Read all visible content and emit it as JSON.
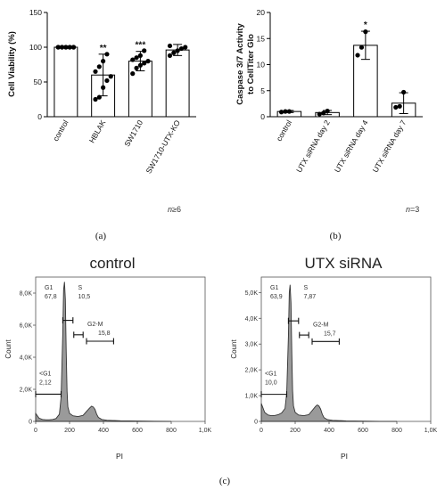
{
  "chart_data": [
    {
      "type": "bar",
      "panel_label": "(a)",
      "ylabel": "Cell Viability (%)",
      "ylim": [
        0,
        150
      ],
      "yticks": [
        "0",
        "50",
        "100",
        "150"
      ],
      "categories": [
        "control",
        "HBLAK",
        "SW1710",
        "SW1710-UTX-KO"
      ],
      "values": [
        100,
        60,
        80,
        96
      ],
      "errors": [
        0,
        30,
        14,
        8
      ],
      "significance": [
        "",
        "**",
        "***",
        ""
      ],
      "points": [
        [
          100,
          100,
          100,
          100,
          100,
          100,
          100,
          100,
          100,
          100
        ],
        [
          25,
          28,
          42,
          52,
          58,
          65,
          72,
          80,
          90
        ],
        [
          62,
          70,
          74,
          77,
          80,
          82,
          85,
          88,
          95
        ],
        [
          88,
          92,
          95,
          98,
          100,
          102
        ]
      ],
      "note_prefix": "n",
      "note_rest": "≥6"
    },
    {
      "type": "bar",
      "panel_label": "(b)",
      "ylabel_line1": "Caspase 3/7 Activity",
      "ylabel_line2": "to CellTiter Glo",
      "ylim": [
        0,
        20
      ],
      "yticks": [
        "0",
        "5",
        "10",
        "15",
        "20"
      ],
      "categories": [
        "control",
        "UTX siRNA day 2",
        "UTX siRNA day 4",
        "UTX siRNA day 7"
      ],
      "values": [
        1.0,
        0.8,
        13.7,
        2.6
      ],
      "errors": [
        0.2,
        0.4,
        2.7,
        2.0
      ],
      "significance": [
        "",
        "",
        "*",
        ""
      ],
      "points": [
        [
          0.9,
          1.0,
          1.0
        ],
        [
          0.5,
          0.7,
          1.1
        ],
        [
          11.8,
          13.3,
          16.3
        ],
        [
          1.8,
          2.0,
          4.7
        ]
      ],
      "note_prefix": "n",
      "note_rest": "=3"
    },
    {
      "type": "area",
      "panel_label": "(c)",
      "title": "control",
      "xlabel": "PI",
      "ylabel": "Count",
      "xlim": [
        0,
        1000
      ],
      "ylim": [
        0,
        9000
      ],
      "xticks": [
        "0",
        "200",
        "400",
        "600",
        "800",
        "1,0K"
      ],
      "yticks": [
        "0",
        "2,0K",
        "4,0K",
        "6,0K",
        "8,0K"
      ],
      "ytick_values": [
        0,
        2000,
        4000,
        6000,
        8000
      ],
      "gates": [
        {
          "name": "G1",
          "value": "67,8",
          "x_from": 160,
          "x_to": 220,
          "y": 6300
        },
        {
          "name": "S",
          "value": "10,5",
          "x_from": 225,
          "x_to": 280,
          "y": 5400
        },
        {
          "name": "G2-M",
          "value": "15,8",
          "x_from": 300,
          "x_to": 460,
          "y": 5000
        },
        {
          "name": "<G1",
          "value": "2,12",
          "x_from": 0,
          "x_to": 150,
          "y": 1700
        }
      ],
      "histogram": {
        "x": [
          0,
          20,
          40,
          60,
          80,
          100,
          120,
          140,
          150,
          160,
          165,
          170,
          175,
          180,
          185,
          190,
          200,
          220,
          250,
          280,
          300,
          320,
          330,
          340,
          350,
          360,
          370,
          390,
          420,
          500,
          600,
          700,
          800
        ],
        "y": [
          500,
          200,
          120,
          100,
          100,
          120,
          180,
          450,
          1500,
          5500,
          8200,
          8700,
          7600,
          4500,
          1900,
          900,
          500,
          350,
          300,
          380,
          620,
          850,
          950,
          900,
          750,
          450,
          250,
          120,
          70,
          40,
          20,
          10,
          0
        ]
      }
    },
    {
      "type": "area",
      "title": "UTX siRNA",
      "xlabel": "PI",
      "ylabel": "Count",
      "xlim": [
        0,
        1000
      ],
      "ylim": [
        0,
        5600
      ],
      "xticks": [
        "0",
        "200",
        "400",
        "600",
        "800",
        "1,0K"
      ],
      "yticks": [
        "0",
        "1,0K",
        "2,0K",
        "3,0K",
        "4,0K",
        "5,0K"
      ],
      "ytick_values": [
        0,
        1000,
        2000,
        3000,
        4000,
        5000
      ],
      "gates": [
        {
          "name": "G1",
          "value": "63,9",
          "x_from": 160,
          "x_to": 220,
          "y": 3900
        },
        {
          "name": "S",
          "value": "7,87",
          "x_from": 225,
          "x_to": 280,
          "y": 3350
        },
        {
          "name": "G2-M",
          "value": "15,7",
          "x_from": 300,
          "x_to": 460,
          "y": 3100
        },
        {
          "name": "<G1",
          "value": "10,0",
          "x_from": 0,
          "x_to": 150,
          "y": 1050
        }
      ],
      "histogram": {
        "x": [
          0,
          20,
          40,
          60,
          80,
          100,
          120,
          140,
          150,
          160,
          165,
          170,
          175,
          180,
          185,
          190,
          200,
          220,
          250,
          280,
          300,
          320,
          330,
          340,
          350,
          360,
          370,
          390,
          420,
          500,
          600,
          700,
          800
        ],
        "y": [
          700,
          350,
          250,
          220,
          230,
          260,
          330,
          500,
          1100,
          3300,
          5000,
          5300,
          4600,
          2700,
          1200,
          600,
          350,
          250,
          220,
          260,
          420,
          580,
          640,
          600,
          480,
          280,
          150,
          70,
          40,
          20,
          10,
          5,
          0
        ]
      }
    }
  ]
}
